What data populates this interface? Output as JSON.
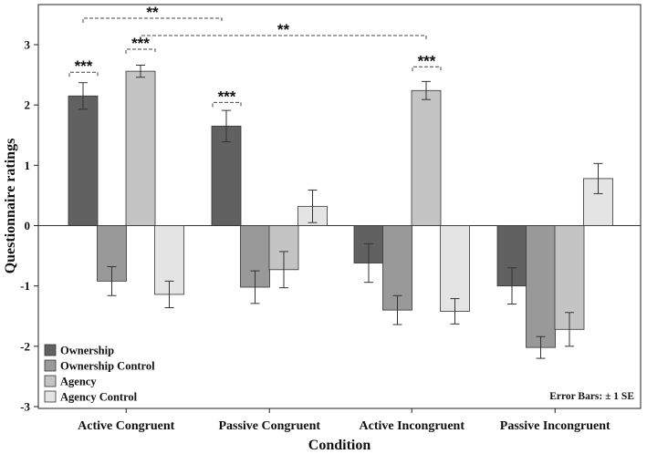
{
  "chart_data": {
    "type": "bar",
    "xlabel": "Condition",
    "ylabel": "Questionnaire ratings",
    "ylim": [
      -3,
      3
    ],
    "yticks": [
      "-3",
      "-2",
      "-1",
      "0",
      "1",
      "2",
      "3"
    ],
    "categories": [
      "Active Congruent",
      "Passive Congruent",
      "Active Incongruent",
      "Passive Incongruent"
    ],
    "series": [
      {
        "name": "Ownership",
        "color": "#616161",
        "values": [
          2.15,
          1.65,
          -0.62,
          -1.0
        ],
        "errors": [
          0.22,
          0.26,
          0.32,
          0.3
        ]
      },
      {
        "name": "Ownership Control",
        "color": "#999999",
        "values": [
          -0.92,
          -1.02,
          -1.4,
          -2.02
        ],
        "errors": [
          0.24,
          0.27,
          0.24,
          0.18
        ]
      },
      {
        "name": "Agency",
        "color": "#c4c4c4",
        "values": [
          2.56,
          -0.73,
          2.24,
          -1.72
        ],
        "errors": [
          0.1,
          0.3,
          0.15,
          0.28
        ]
      },
      {
        "name": "Agency Control",
        "color": "#e4e4e4",
        "values": [
          -1.14,
          0.32,
          -1.42,
          0.78
        ],
        "errors": [
          0.22,
          0.27,
          0.21,
          0.25
        ]
      }
    ],
    "legend_position": "bottom-left",
    "annotations": [
      {
        "label": "**",
        "category": 0,
        "from_series": 0,
        "to_category": 0,
        "to_series": 2,
        "level": "top"
      },
      {
        "label": "**",
        "category": 0,
        "from_series": 2,
        "to_category": 2,
        "to_series": 2,
        "level": "second"
      },
      {
        "label": "***",
        "category": 0,
        "from_series": 0,
        "to_series": 1,
        "level": "bar"
      },
      {
        "label": "***",
        "category": 0,
        "from_series": 2,
        "to_series": 3,
        "level": "bar"
      },
      {
        "label": "***",
        "category": 1,
        "from_series": 0,
        "to_series": 1,
        "level": "bar"
      },
      {
        "label": "***",
        "category": 2,
        "from_series": 2,
        "to_series": 3,
        "level": "bar"
      }
    ],
    "note": "Error Bars: ± 1 SE"
  }
}
